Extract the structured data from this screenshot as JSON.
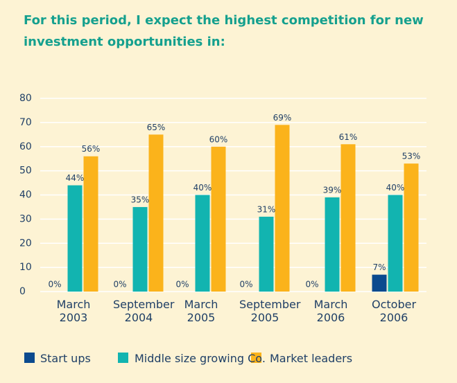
{
  "chart_data": {
    "type": "bar",
    "title": "For this period, I expect the highest competition for new investment opportunities in:",
    "categories": [
      "March 2003",
      "September 2004",
      "March 2005",
      "September 2005",
      "March 2006",
      "October 2006"
    ],
    "series": [
      {
        "name": "Start ups",
        "color": "#0b4a8e",
        "values": [
          0,
          0,
          0,
          0,
          0,
          7
        ],
        "value_labels": [
          "0%",
          "0%",
          "0%",
          "0%",
          "0%",
          "7%"
        ]
      },
      {
        "name": "Middle size growing Co.",
        "color": "#12b4b0",
        "values": [
          44,
          35,
          40,
          31,
          39,
          40
        ],
        "value_labels": [
          "44%",
          "35%",
          "40%",
          "31%",
          "39%",
          "40%"
        ]
      },
      {
        "name": "Market leaders",
        "color": "#fbb31b",
        "values": [
          56,
          65,
          60,
          69,
          61,
          53
        ],
        "value_labels": [
          "56%",
          "65%",
          "60%",
          "69%",
          "61%",
          "53%"
        ]
      }
    ],
    "ylim": [
      0,
      80
    ],
    "yticks": [
      0,
      10,
      20,
      30,
      40,
      50,
      60,
      70,
      80
    ],
    "grid": true,
    "legend": "bottom"
  }
}
